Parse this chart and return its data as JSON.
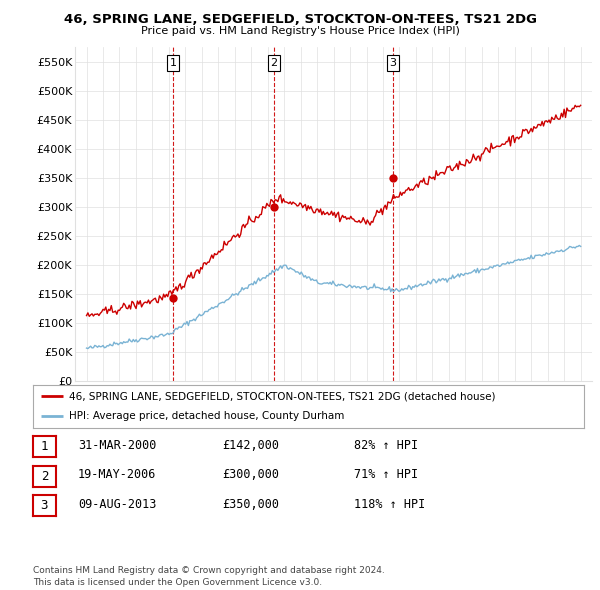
{
  "title1": "46, SPRING LANE, SEDGEFIELD, STOCKTON-ON-TEES, TS21 2DG",
  "title2": "Price paid vs. HM Land Registry's House Price Index (HPI)",
  "ylim": [
    0,
    575000
  ],
  "yticks": [
    0,
    50000,
    100000,
    150000,
    200000,
    250000,
    300000,
    350000,
    400000,
    450000,
    500000,
    550000
  ],
  "ytick_labels": [
    "£0",
    "£50K",
    "£100K",
    "£150K",
    "£200K",
    "£250K",
    "£300K",
    "£350K",
    "£400K",
    "£450K",
    "£500K",
    "£550K"
  ],
  "sale_dates": [
    2000.25,
    2006.38,
    2013.6
  ],
  "sale_prices": [
    142000,
    300000,
    350000
  ],
  "sale_labels": [
    "1",
    "2",
    "3"
  ],
  "vline_color": "#cc0000",
  "red_line_color": "#cc0000",
  "blue_line_color": "#7ab3d4",
  "legend_red": "46, SPRING LANE, SEDGEFIELD, STOCKTON-ON-TEES, TS21 2DG (detached house)",
  "legend_blue": "HPI: Average price, detached house, County Durham",
  "table_rows": [
    {
      "num": "1",
      "date": "31-MAR-2000",
      "price": "£142,000",
      "hpi": "82% ↑ HPI"
    },
    {
      "num": "2",
      "date": "19-MAY-2006",
      "price": "£300,000",
      "hpi": "71% ↑ HPI"
    },
    {
      "num": "3",
      "date": "09-AUG-2013",
      "price": "£350,000",
      "hpi": "118% ↑ HPI"
    }
  ],
  "footer": "Contains HM Land Registry data © Crown copyright and database right 2024.\nThis data is licensed under the Open Government Licence v3.0.",
  "bg_color": "#ffffff",
  "grid_color": "#e0e0e0"
}
